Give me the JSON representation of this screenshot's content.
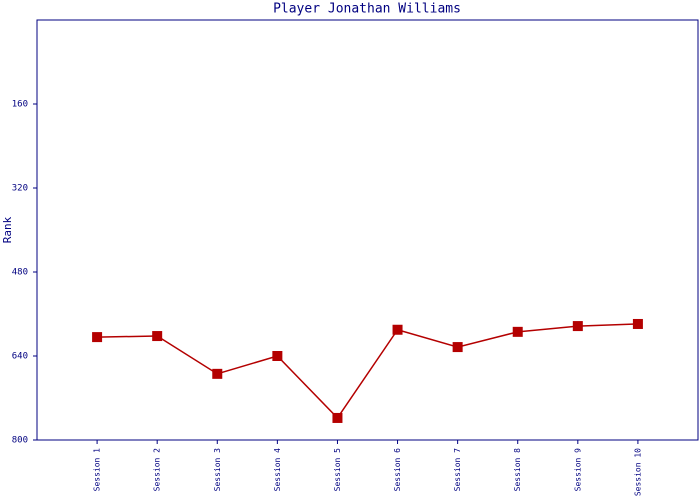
{
  "chart_data": {
    "type": "line",
    "title": "Player Jonathan Williams",
    "y_label": "Rank",
    "categories": [
      "Session 1",
      "Session 2",
      "Session 3",
      "Session 4",
      "Session 5",
      "Session 6",
      "Session 7",
      "Session 8",
      "Session 9",
      "Session 10"
    ],
    "series": [
      {
        "name": "Rank",
        "color": "#b40000",
        "values": [
          604,
          602,
          674,
          640,
          758,
          590,
          623,
          594,
          583,
          579
        ]
      }
    ],
    "ylim": [
      800,
      0
    ],
    "yticks": [
      160,
      320,
      480,
      640,
      800
    ],
    "grid": false
  }
}
